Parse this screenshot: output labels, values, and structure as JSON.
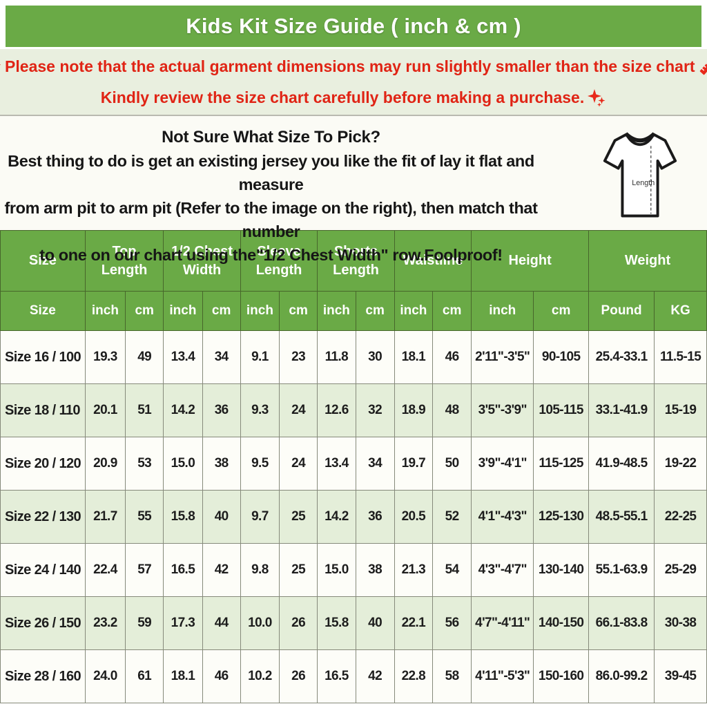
{
  "title": "Kids Kit Size Guide ( inch & cm )",
  "notice": {
    "line1_text": "Please note that the actual garment dimensions may run slightly smaller than the size chart",
    "line1_end": ".",
    "line2_text": "Kindly review the size chart carefully before making a purchase.",
    "pin_icon": "pushpin-icon",
    "ruler_icon": "ruler-icon",
    "sparkle_icon": "sparkles-icon",
    "accent_color": "#e02415"
  },
  "instructions": {
    "heading": "Not Sure What Size To Pick?",
    "body_lines": [
      "Best thing to do is get an existing jersey you like the fit of lay it flat and measure",
      "from arm pit to arm pit (Refer to the image on the right), then match that number",
      "to one on our chart using the\"1/2 Chest Width\" row.Foolproof!"
    ],
    "shirt_label": "Length"
  },
  "table": {
    "groups": [
      {
        "label": "Size",
        "span": 1
      },
      {
        "label": "Top Length",
        "span": 2
      },
      {
        "label": "1/2 Chest Width",
        "span": 2
      },
      {
        "label": "Sleeve Length",
        "span": 2
      },
      {
        "label": "Shorts Length",
        "span": 2
      },
      {
        "label": "Waistline",
        "span": 2
      },
      {
        "label": "Height",
        "span": 2
      },
      {
        "label": "Weight",
        "span": 2
      }
    ],
    "subheaders": [
      "Size",
      "inch",
      "cm",
      "inch",
      "cm",
      "inch",
      "cm",
      "inch",
      "cm",
      "inch",
      "cm",
      "inch",
      "cm",
      "Pound",
      "KG"
    ],
    "rows": [
      [
        "Size 16 / 100",
        "19.3",
        "49",
        "13.4",
        "34",
        "9.1",
        "23",
        "11.8",
        "30",
        "18.1",
        "46",
        "2'11\"-3'5\"",
        "90-105",
        "25.4-33.1",
        "11.5-15"
      ],
      [
        "Size 18 / 110",
        "20.1",
        "51",
        "14.2",
        "36",
        "9.3",
        "24",
        "12.6",
        "32",
        "18.9",
        "48",
        "3'5\"-3'9\"",
        "105-115",
        "33.1-41.9",
        "15-19"
      ],
      [
        "Size 20 / 120",
        "20.9",
        "53",
        "15.0",
        "38",
        "9.5",
        "24",
        "13.4",
        "34",
        "19.7",
        "50",
        "3'9\"-4'1\"",
        "115-125",
        "41.9-48.5",
        "19-22"
      ],
      [
        "Size 22 / 130",
        "21.7",
        "55",
        "15.8",
        "40",
        "9.7",
        "25",
        "14.2",
        "36",
        "20.5",
        "52",
        "4'1\"-4'3\"",
        "125-130",
        "48.5-55.1",
        "22-25"
      ],
      [
        "Size 24 / 140",
        "22.4",
        "57",
        "16.5",
        "42",
        "9.8",
        "25",
        "15.0",
        "38",
        "21.3",
        "54",
        "4'3\"-4'7\"",
        "130-140",
        "55.1-63.9",
        "25-29"
      ],
      [
        "Size 26 / 150",
        "23.2",
        "59",
        "17.3",
        "44",
        "10.0",
        "26",
        "15.8",
        "40",
        "22.1",
        "56",
        "4'7\"-4'11\"",
        "140-150",
        "66.1-83.8",
        "30-38"
      ],
      [
        "Size 28 / 160",
        "24.0",
        "61",
        "18.1",
        "46",
        "10.2",
        "26",
        "16.5",
        "42",
        "22.8",
        "58",
        "4'11\"-5'3\"",
        "150-160",
        "86.0-99.2",
        "39-45"
      ]
    ]
  },
  "colors": {
    "header_green": "#6aaa46",
    "notice_background": "#e9efdf",
    "notice_red": "#e02415",
    "row_stripe": "#e4eed9",
    "text_dark": "#1d1d1d"
  }
}
